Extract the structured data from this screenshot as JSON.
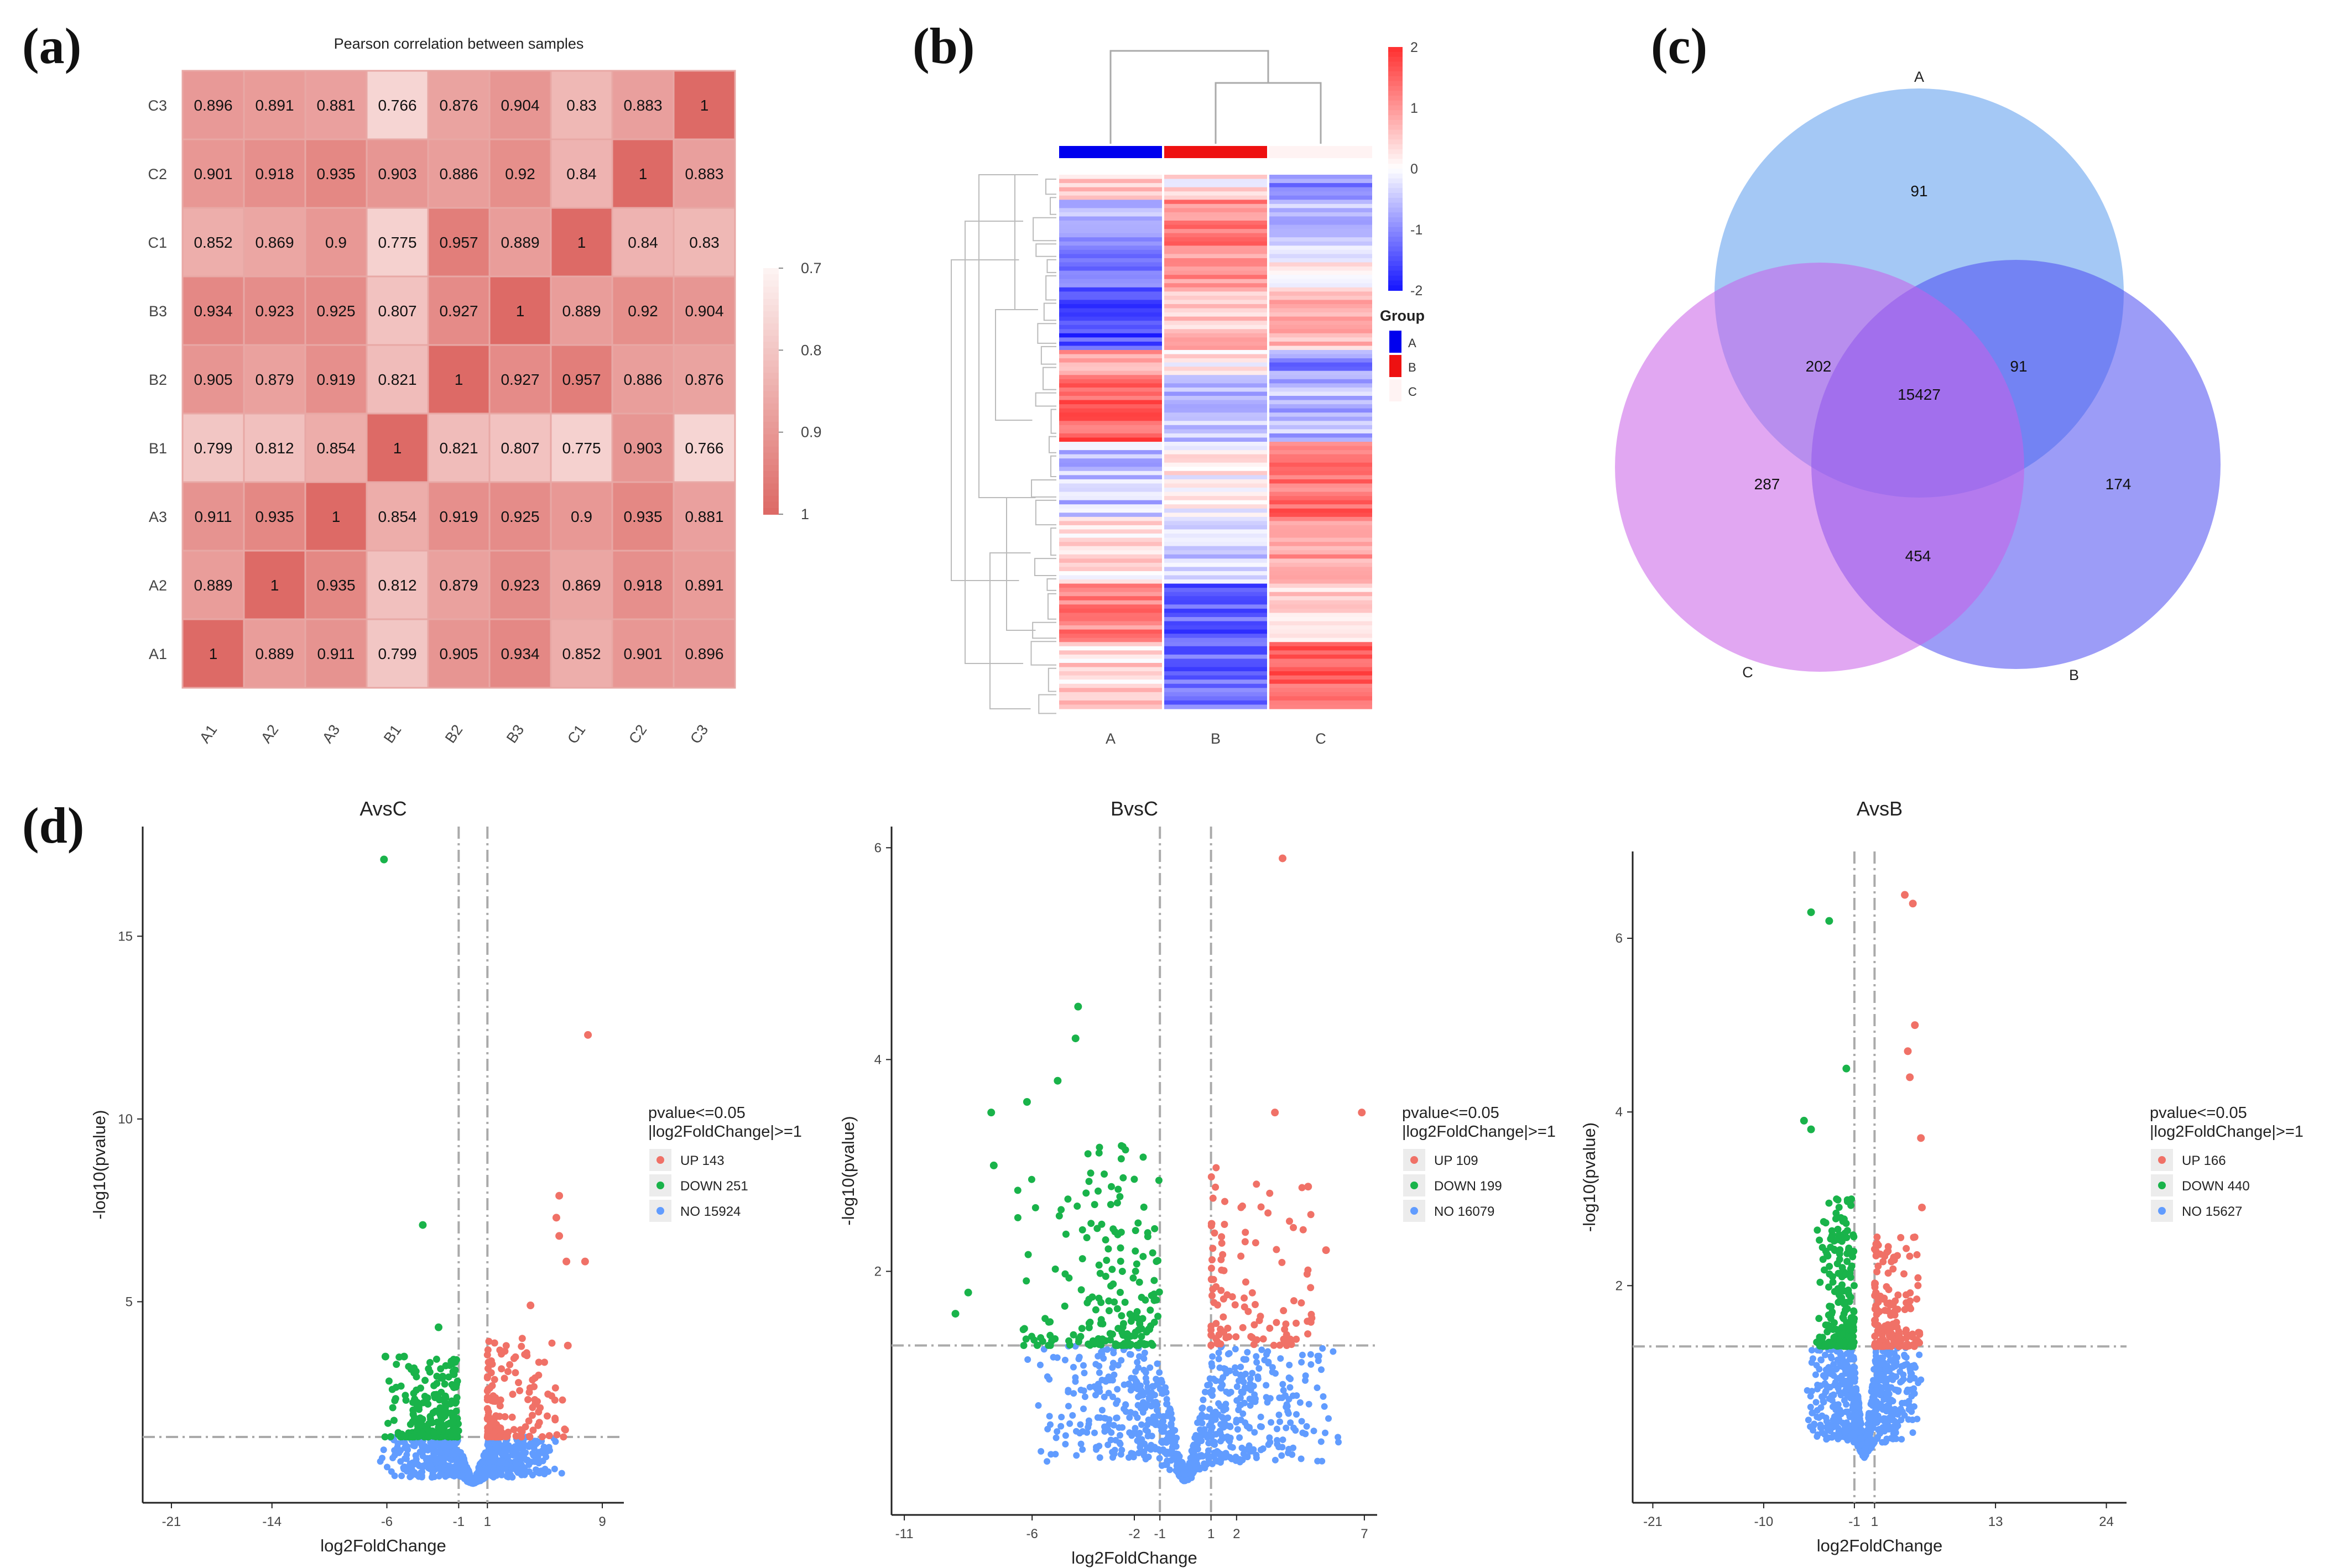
{
  "panels": {
    "a": "(a)",
    "b": "(b)",
    "c": "(c)",
    "d": "(d)"
  },
  "chart_data": [
    {
      "type": "heatmap",
      "id": "a",
      "title": "Pearson correlation between samples",
      "rows": [
        "C3",
        "C2",
        "C1",
        "B3",
        "B2",
        "B1",
        "A3",
        "A2",
        "A1"
      ],
      "cols": [
        "A1",
        "A2",
        "A3",
        "B1",
        "B2",
        "B3",
        "C1",
        "C2",
        "C3"
      ],
      "values": [
        [
          0.896,
          0.891,
          0.881,
          0.766,
          0.876,
          0.904,
          0.83,
          0.883,
          1
        ],
        [
          0.901,
          0.918,
          0.935,
          0.903,
          0.886,
          0.92,
          0.84,
          1,
          0.883
        ],
        [
          0.852,
          0.869,
          0.9,
          0.775,
          0.957,
          0.889,
          1,
          0.84,
          0.83
        ],
        [
          0.934,
          0.923,
          0.925,
          0.807,
          0.927,
          1,
          0.889,
          0.92,
          0.904
        ],
        [
          0.905,
          0.879,
          0.919,
          0.821,
          1,
          0.927,
          0.957,
          0.886,
          0.876
        ],
        [
          0.799,
          0.812,
          0.854,
          1,
          0.821,
          0.807,
          0.775,
          0.903,
          0.766
        ],
        [
          0.911,
          0.935,
          1,
          0.854,
          0.919,
          0.925,
          0.9,
          0.935,
          0.881
        ],
        [
          0.889,
          1,
          0.935,
          0.812,
          0.879,
          0.923,
          0.869,
          0.918,
          0.891
        ],
        [
          1,
          0.889,
          0.911,
          0.799,
          0.905,
          0.934,
          0.852,
          0.901,
          0.896
        ]
      ],
      "legend_ticks": [
        "0.7",
        "0.8",
        "0.9",
        "1"
      ],
      "range": [
        0.7,
        1
      ],
      "colors": {
        "low": "#fdf3f2",
        "high": "#dd6a66",
        "grid": "#e8a8a5"
      }
    },
    {
      "type": "heatmap",
      "id": "b",
      "columns": [
        "A",
        "B",
        "C"
      ],
      "scale_ticks": [
        "2",
        "1",
        "0",
        "-1",
        "-2"
      ],
      "scale_range": [
        -2,
        2
      ],
      "legend_title": "Group",
      "groups": [
        {
          "name": "A",
          "color": "#0000ee"
        },
        {
          "name": "B",
          "color": "#ee1111"
        },
        {
          "name": "C",
          "color": "#fff3f3"
        }
      ],
      "blocks": [
        {
          "rows": 6,
          "values": [
            0.4,
            0.2,
            -1.0
          ]
        },
        {
          "rows": 12,
          "values": [
            -0.8,
            1.2,
            -0.5
          ]
        },
        {
          "rows": 10,
          "values": [
            -1.3,
            1.0,
            0.1
          ]
        },
        {
          "rows": 14,
          "values": [
            -1.6,
            0.6,
            0.7
          ]
        },
        {
          "rows": 6,
          "values": [
            0.9,
            0.2,
            -1.0
          ]
        },
        {
          "rows": 16,
          "values": [
            1.6,
            -0.6,
            -0.6
          ]
        },
        {
          "rows": 18,
          "values": [
            -0.5,
            0.1,
            1.4
          ]
        },
        {
          "rows": 16,
          "values": [
            0.3,
            -0.4,
            1.0
          ]
        },
        {
          "rows": 14,
          "values": [
            1.2,
            -1.4,
            0.4
          ]
        },
        {
          "rows": 16,
          "values": [
            0.4,
            -1.3,
            1.5
          ]
        }
      ],
      "colors": {
        "low": "#1a1aff",
        "mid": "#ffffff",
        "high": "#ff3333"
      }
    },
    {
      "type": "venn",
      "id": "c",
      "sets": [
        {
          "name": "A",
          "color": "#5a9bec"
        },
        {
          "name": "B",
          "color": "#4a4af0"
        },
        {
          "name": "C",
          "color": "#c85ee8"
        }
      ],
      "regions": {
        "A_only": "91",
        "B_only": "174",
        "C_only": "287",
        "AB": "91",
        "AC": "202",
        "BC": "454",
        "ABC": "15427"
      }
    },
    {
      "type": "scatter",
      "id": "d1",
      "title": "AvsC",
      "xlabel": "log2FoldChange",
      "ylabel": "-log10(pvalue)",
      "xlim": [
        -23,
        10.5
      ],
      "ylim": [
        -0.5,
        18
      ],
      "xticks": [
        -21,
        -14,
        -6,
        -1,
        1,
        9
      ],
      "yticks": [
        5,
        10,
        15
      ],
      "fc_cut": 1,
      "p_line": 1.3,
      "legend": {
        "title": "pvalue<=0.05",
        "subtitle": "|log2FoldChange|>=1",
        "up": "UP 143",
        "down": "DOWN 251",
        "no": "NO 15924"
      },
      "counts": {
        "up": 143,
        "down": 251,
        "no": 15924
      },
      "spread": {
        "up_x": [
          1,
          6.5
        ],
        "down_x": [
          -6.5,
          -1
        ],
        "up_y": [
          1.3,
          4.0
        ],
        "down_y": [
          1.3,
          3.5
        ],
        "no_x": 6.5,
        "no_max": 1.3
      },
      "outliers": {
        "up": [
          [
            8,
            12.3
          ],
          [
            6,
            7.9
          ],
          [
            6.5,
            6.1
          ],
          [
            7.8,
            6.1
          ],
          [
            5.8,
            7.3
          ],
          [
            6,
            6.8
          ],
          [
            4,
            4.9
          ],
          [
            6.6,
            3.8
          ]
        ],
        "down": [
          [
            -6.2,
            17.1
          ],
          [
            -3.5,
            7.1
          ],
          [
            -2.4,
            4.3
          ],
          [
            -6.1,
            3.5
          ],
          [
            -4.8,
            3.5
          ]
        ]
      },
      "colors": {
        "up": "#f07167",
        "down": "#19b34a",
        "no": "#619cff"
      }
    },
    {
      "type": "scatter",
      "id": "d2",
      "title": "BvsC",
      "xlabel": "log2FoldChange",
      "ylabel": "-log10(pvalue)",
      "xlim": [
        -11.5,
        7.5
      ],
      "ylim": [
        -0.3,
        6.2
      ],
      "xticks": [
        -11,
        -6,
        -2,
        -1,
        1,
        2,
        7
      ],
      "yticks": [
        2,
        4,
        6
      ],
      "fc_cut": 1,
      "p_line": 1.3,
      "legend": {
        "title": "pvalue<=0.05",
        "subtitle": "|log2FoldChange|>=1",
        "up": "UP 109",
        "down": "DOWN 199",
        "no": "NO 16079"
      },
      "counts": {
        "up": 109,
        "down": 199,
        "no": 16079
      },
      "spread": {
        "up_x": [
          1,
          5
        ],
        "down_x": [
          -7,
          -1
        ],
        "up_y": [
          1.3,
          3.0
        ],
        "down_y": [
          1.3,
          3.2
        ],
        "no_x": 6.5,
        "no_max": 1.3
      },
      "outliers": {
        "up": [
          [
            3.8,
            5.9
          ],
          [
            6.9,
            3.5
          ],
          [
            3.5,
            3.5
          ],
          [
            5.5,
            2.2
          ],
          [
            4.8,
            2.8
          ]
        ],
        "down": [
          [
            -4.2,
            4.5
          ],
          [
            -4.3,
            4.2
          ],
          [
            -5,
            3.8
          ],
          [
            -6.2,
            3.6
          ],
          [
            -7.5,
            3.0
          ],
          [
            -7.6,
            3.5
          ],
          [
            -9,
            1.6
          ],
          [
            -8.5,
            1.8
          ]
        ]
      },
      "colors": {
        "up": "#f07167",
        "down": "#19b34a",
        "no": "#619cff"
      }
    },
    {
      "type": "scatter",
      "id": "d3",
      "title": "AvsB",
      "xlabel": "log2FoldChange",
      "ylabel": "-log10(pvalue)",
      "xlim": [
        -23,
        26
      ],
      "ylim": [
        -0.5,
        7
      ],
      "xticks": [
        -21,
        -10,
        -1,
        1,
        13,
        24
      ],
      "yticks": [
        2,
        4,
        6
      ],
      "fc_cut": 1,
      "p_line": 1.3,
      "legend": {
        "title": "pvalue<=0.05",
        "subtitle": "|log2FoldChange|>=1",
        "up": "UP 166",
        "down": "DOWN 440",
        "no": "NO 15627"
      },
      "counts": {
        "up": 166,
        "down": 440,
        "no": 15627
      },
      "spread": {
        "up_x": [
          1,
          5.5
        ],
        "down_x": [
          -5,
          -1
        ],
        "up_y": [
          1.3,
          2.6
        ],
        "down_y": [
          1.3,
          3.0
        ],
        "no_x": 6,
        "no_max": 1.3
      },
      "outliers": {
        "up": [
          [
            4,
            6.5
          ],
          [
            4.8,
            6.4
          ],
          [
            5,
            5.0
          ],
          [
            4.3,
            4.7
          ],
          [
            5.6,
            3.7
          ],
          [
            5.7,
            2.9
          ],
          [
            4.5,
            4.4
          ]
        ],
        "down": [
          [
            -5.3,
            6.3
          ],
          [
            -3.5,
            6.2
          ],
          [
            -1.8,
            4.5
          ],
          [
            -6,
            3.9
          ],
          [
            -5.3,
            3.8
          ]
        ]
      },
      "colors": {
        "up": "#f07167",
        "down": "#19b34a",
        "no": "#619cff"
      }
    }
  ]
}
